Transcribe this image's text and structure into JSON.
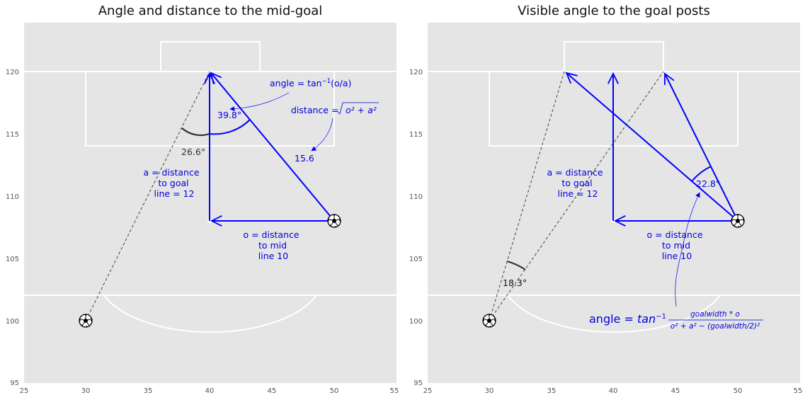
{
  "x_ticks": [
    "25",
    "30",
    "35",
    "40",
    "45",
    "50",
    "55"
  ],
  "y_ticks": [
    "95",
    "100",
    "105",
    "110",
    "115",
    "120"
  ],
  "colors": {
    "field": "#e5e5e5",
    "lines": "#ffffff",
    "vector": "#0000ff",
    "text_blue": "#0000dd",
    "dashed": "#444444",
    "arc_dark": "#333333"
  },
  "ball_icon": "soccer-ball-icon",
  "panel_left": {
    "title": "Angle and distance to the mid-goal",
    "angle_formula_prefix": "angle = tan",
    "angle_formula_sup": "−1",
    "angle_formula_suffix": "(o/a)",
    "angle_label": "39.8°",
    "distance_formula_prefix": "distance = ",
    "distance_formula_radicand": "o² + a²",
    "distance_value": "15.6",
    "dashed_angle_label": "26.6°",
    "a_label": [
      "a = distance",
      "to goal",
      "line = 12"
    ],
    "o_label": [
      "o = distance",
      "to mid",
      "line 10"
    ]
  },
  "panel_right": {
    "title": "Visible angle to the goal posts",
    "angle_label": "22.8°",
    "dashed_angle_label": "18.3°",
    "a_label": [
      "a = distance",
      "to goal",
      "line = 12"
    ],
    "o_label": [
      "o = distance",
      "to mid",
      "line 10"
    ],
    "formula_prefix": "angle = ",
    "formula_tan": "tan",
    "formula_sup": "−1",
    "formula_numerator": "goalwidth * o",
    "formula_denominator": "o² + a² − (goalwidth/2)²"
  }
}
